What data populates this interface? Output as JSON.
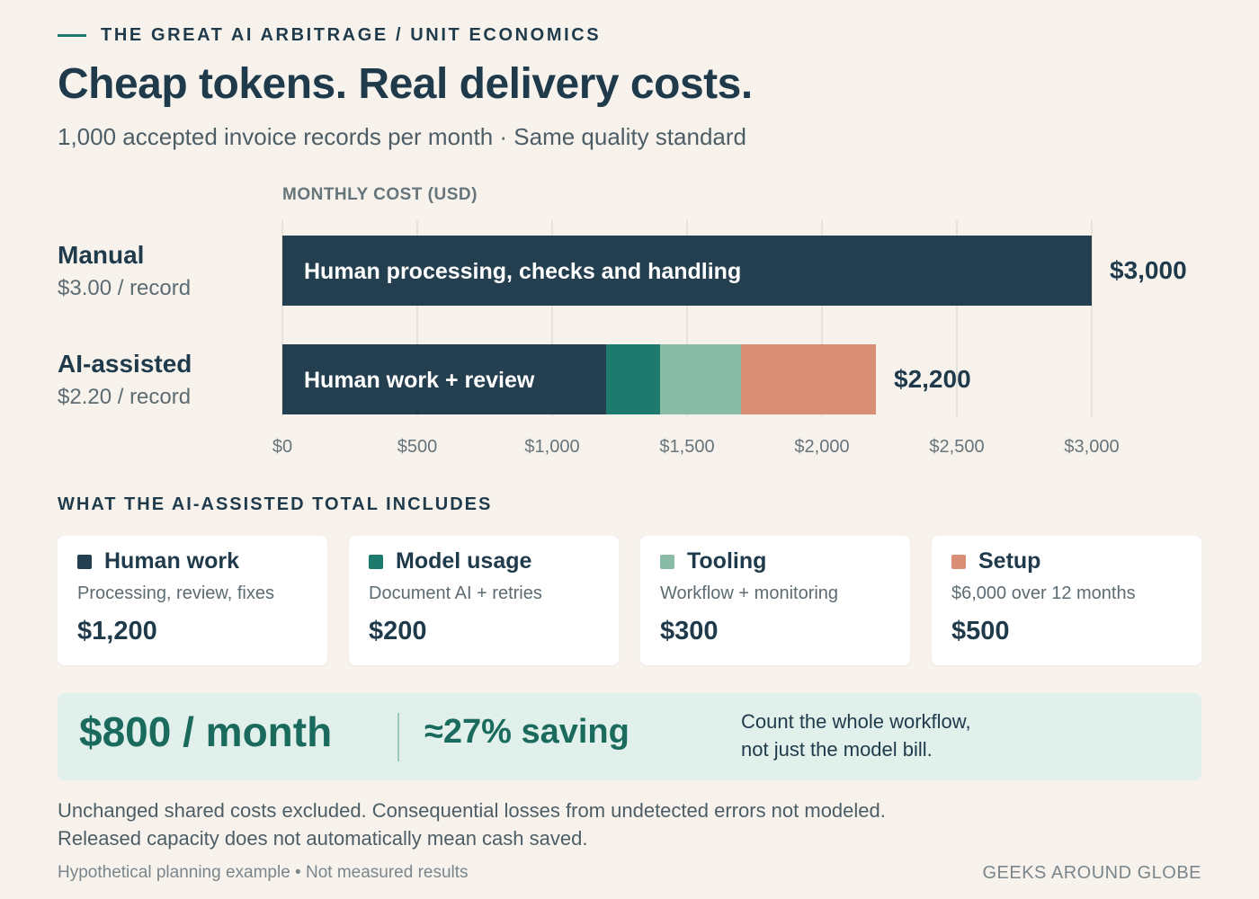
{
  "header": {
    "kicker": "THE GREAT AI ARBITRAGE / UNIT ECONOMICS",
    "title": "Cheap tokens. Real delivery costs.",
    "subtitle": "1,000 accepted invoice records per month · Same quality standard"
  },
  "chart_data": {
    "type": "bar",
    "orientation": "horizontal",
    "stacked": true,
    "axis_title": "MONTHLY COST (USD)",
    "xlim": [
      0,
      3000
    ],
    "ticks": [
      0,
      500,
      1000,
      1500,
      2000,
      2500,
      3000
    ],
    "tick_labels": [
      "$0",
      "$500",
      "$1,000",
      "$1,500",
      "$2,000",
      "$2,500",
      "$3,000"
    ],
    "grid": true,
    "rows": [
      {
        "label": "Manual",
        "sublabel": "$3.00 / record",
        "total_label": "$3,000",
        "segments": [
          {
            "name": "Human processing, checks and handling",
            "value": 3000,
            "color": "#243f4f",
            "label": "Human processing, checks and handling"
          }
        ]
      },
      {
        "label": "AI-assisted",
        "sublabel": "$2.20 / record",
        "total_label": "$2,200",
        "segments": [
          {
            "name": "Human work",
            "value": 1200,
            "color": "#243f4f",
            "label": "Human work + review"
          },
          {
            "name": "Model usage",
            "value": 200,
            "color": "#1f7a6e",
            "label": ""
          },
          {
            "name": "Tooling",
            "value": 300,
            "color": "#8abba6",
            "label": ""
          },
          {
            "name": "Setup",
            "value": 500,
            "color": "#d88f76",
            "label": ""
          }
        ]
      }
    ]
  },
  "breakdown": {
    "title": "WHAT THE AI-ASSISTED TOTAL INCLUDES",
    "cards": [
      {
        "title": "Human work",
        "desc": "Processing, review, fixes",
        "value": "$1,200",
        "color": "#243f4f"
      },
      {
        "title": "Model usage",
        "desc": "Document AI + retries",
        "value": "$200",
        "color": "#1f7a6e"
      },
      {
        "title": "Tooling",
        "desc": "Workflow + monitoring",
        "value": "$300",
        "color": "#8abba6"
      },
      {
        "title": "Setup",
        "desc": "$6,000 over 12 months",
        "value": "$500",
        "color": "#d88f76"
      }
    ]
  },
  "summary": {
    "amount": "$800 / month",
    "saving": "≈27% saving",
    "note_line1": "Count the whole workflow,",
    "note_line2": "not just the model bill."
  },
  "notes": {
    "line1": "Unchanged shared costs excluded. Consequential losses from undetected errors not modeled.",
    "line2": "Released capacity does not automatically mean cash saved."
  },
  "footer": {
    "left": "Hypothetical planning example • Not measured results",
    "right": "GEEKS AROUND GLOBE"
  }
}
